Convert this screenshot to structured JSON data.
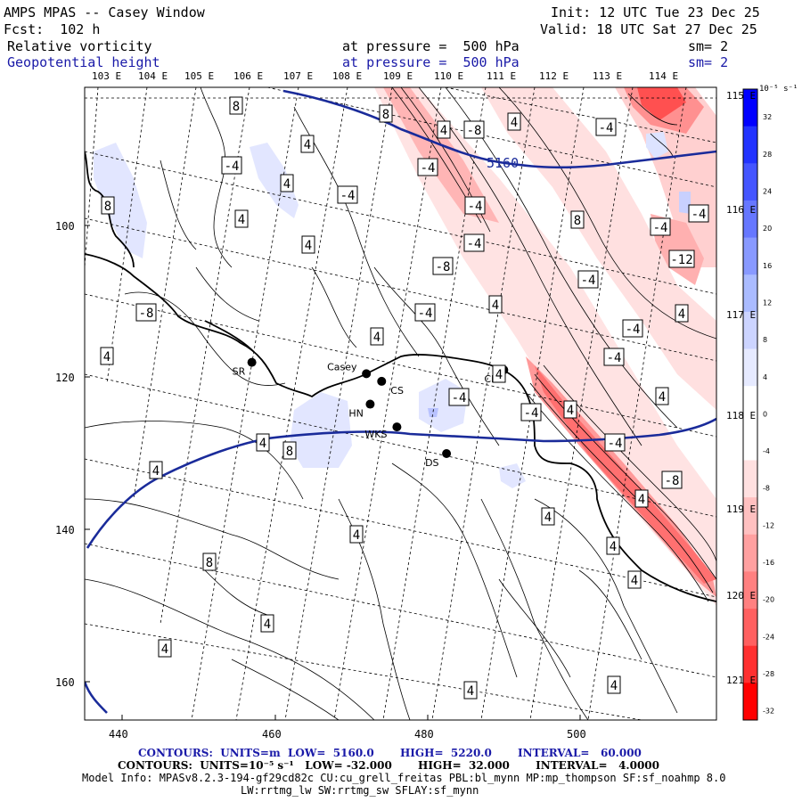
{
  "header": {
    "title": "AMPS MPAS -- Casey Window",
    "forecast": "Fcst:  102 h",
    "init": "Init: 12 UTC Tue 23 Dec 25",
    "valid": "Valid: 18 UTC Sat 27 Dec 25",
    "field1_name": "Relative vorticity",
    "field1_level": "at pressure =  500 hPa",
    "field1_sm": "sm= 2",
    "field2_name": "Geopotential height",
    "field2_level": "at pressure =  500 hPa",
    "field2_sm": "sm= 2"
  },
  "axes": {
    "top_lon_labels": [
      "103 E",
      "104 E",
      "105 E",
      "106 E",
      "107 E",
      "108 E",
      "109 E",
      "110 E",
      "111 E",
      "112 E",
      "113 E",
      "114 E"
    ],
    "right_lon_labels": [
      "115 E",
      "116 E",
      "117 E",
      "118 E",
      "119 E",
      "120 E",
      "121 E"
    ],
    "bottom_ticks": [
      "440",
      "460",
      "480",
      "500"
    ],
    "left_ticks": [
      "100",
      "120",
      "140",
      "160"
    ]
  },
  "colorbar": {
    "unit": "10⁻⁵ s⁻¹",
    "labels": [
      "32",
      "28",
      "24",
      "20",
      "16",
      "12",
      "8",
      "4",
      "0",
      "-4",
      "-8",
      "-12",
      "-16",
      "-20",
      "-24",
      "-28",
      "-32"
    ],
    "colors": [
      "#0000ff",
      "#2233ff",
      "#4455ff",
      "#6677ff",
      "#8899ff",
      "#aabbff",
      "#ccd4ff",
      "#e6eaff",
      "#ffffff",
      "#ffffff",
      "#ffe0e0",
      "#ffc0c0",
      "#ffa0a0",
      "#ff8080",
      "#ff6060",
      "#ff3030",
      "#ff0000"
    ]
  },
  "stations": [
    {
      "label": "SR",
      "lon": 457,
      "lat": 118
    },
    {
      "label": "Casey",
      "lon": 472,
      "lat": 119.5
    },
    {
      "label": "CS",
      "lon": 474,
      "lat": 120.5
    },
    {
      "label": "CP",
      "lon": 490,
      "lat": 119
    },
    {
      "label": "HN",
      "lon": 472.5,
      "lat": 123.5
    },
    {
      "label": "WKS",
      "lon": 476,
      "lat": 126.5
    },
    {
      "label": "DS",
      "lon": 482.5,
      "lat": 130
    }
  ],
  "height_contour_label": "5160",
  "vorticity_labels": [
    "8",
    "8",
    "4",
    "4",
    "4",
    "-8",
    "-4",
    "-4",
    "4",
    "-4",
    "-4",
    "8",
    "4",
    "-4",
    "8",
    "-4",
    "4",
    "-4",
    "-8",
    "-12",
    "-4",
    "-8",
    "-4",
    "4",
    "4",
    "4",
    "-4",
    "-4",
    "-4",
    "4",
    "-4",
    "4",
    "8",
    "-4",
    "-8",
    "4",
    "4",
    "8",
    "4",
    "-4",
    "4",
    "4",
    "4",
    "4",
    "4",
    "4",
    "4",
    "4",
    "4",
    "4"
  ],
  "footer": {
    "line1": "CONTOURS:  UNITS=m  LOW=  5160.0       HIGH=  5220.0       INTERVAL=   60.000",
    "line2": "CONTOURS:  UNITS=10⁻⁵ s⁻¹   LOW= -32.000       HIGH=  32.000       INTERVAL=   4.0000",
    "line3": "Model Info: MPASv8.2.3-194-gf29cd82c CU:cu_grell_freitas PBL:bl_mynn MP:mp_thompson SF:sf_noahmp 8.0",
    "line4": "LW:rrtmg_lw SW:rrtmg_sw SFLAY:sf_mynn"
  }
}
